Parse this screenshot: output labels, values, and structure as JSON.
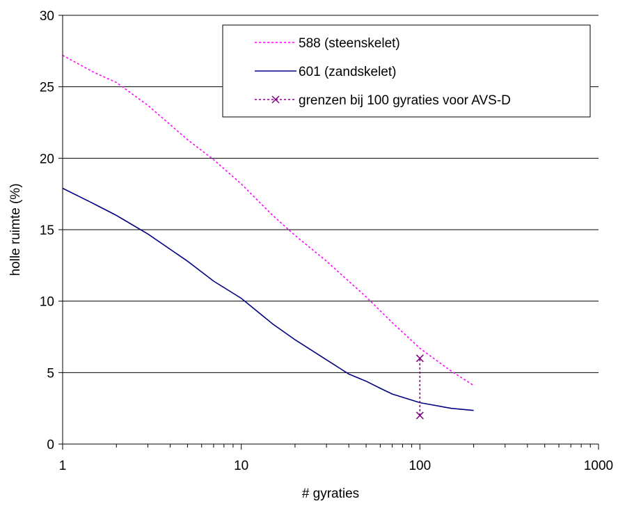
{
  "chart_data": {
    "type": "line",
    "title": "",
    "xlabel": "# gyraties",
    "ylabel": "holle ruimte (%)",
    "x_scale": "log",
    "xlim": [
      1,
      1000
    ],
    "ylim": [
      0,
      30
    ],
    "x_ticks": [
      "1",
      "10",
      "100",
      "1000"
    ],
    "y_ticks": [
      "0",
      "5",
      "10",
      "15",
      "20",
      "25",
      "30"
    ],
    "grid": "horizontal",
    "legend_position": "top-right",
    "series": [
      {
        "name": "588 (steenskelet)",
        "color": "#ff00ff",
        "style": "dotted",
        "x": [
          1,
          1.5,
          2,
          3,
          5,
          7,
          10,
          15,
          20,
          30,
          50,
          70,
          100,
          150,
          200
        ],
        "y": [
          27.2,
          26.0,
          25.3,
          23.7,
          21.3,
          19.9,
          18.2,
          16.0,
          14.6,
          12.8,
          10.3,
          8.5,
          6.7,
          5.1,
          4.1
        ]
      },
      {
        "name": "601 (zandskelet)",
        "color": "#000080",
        "style": "solid",
        "x": [
          1,
          1.5,
          2,
          3,
          5,
          7,
          10,
          15,
          20,
          30,
          40,
          50,
          60,
          70,
          100,
          150,
          200
        ],
        "y": [
          17.9,
          16.8,
          16.0,
          14.7,
          12.8,
          11.4,
          10.2,
          8.4,
          7.3,
          5.9,
          4.9,
          4.4,
          3.9,
          3.5,
          2.9,
          2.5,
          2.35
        ]
      },
      {
        "name": "grenzen bij 100 gyraties voor AVS-D",
        "color": "#800080",
        "style": "dotted",
        "marker": "x",
        "x": [
          100,
          100
        ],
        "y": [
          2,
          6
        ]
      }
    ]
  }
}
